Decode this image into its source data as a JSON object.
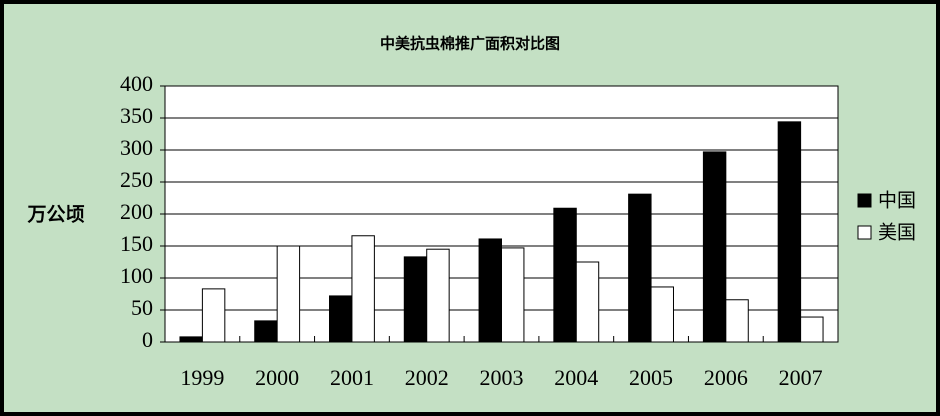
{
  "chart_data": {
    "type": "bar",
    "title": "中美抗虫棉推广面积对比图",
    "y_label": "万公顷",
    "categories": [
      "1999",
      "2000",
      "2001",
      "2002",
      "2003",
      "2004",
      "2005",
      "2006",
      "2007"
    ],
    "series": [
      {
        "name": "中国",
        "color": "#000000",
        "values": [
          8,
          33,
          72,
          133,
          161,
          209,
          231,
          297,
          344
        ]
      },
      {
        "name": "美国",
        "color": "#ffffff",
        "values": [
          83,
          150,
          166,
          145,
          147,
          125,
          86,
          66,
          39
        ]
      }
    ],
    "ylim": [
      0,
      400
    ],
    "yticks": [
      0,
      50,
      100,
      150,
      200,
      250,
      300,
      350,
      400
    ],
    "grid": true,
    "legend": "right"
  }
}
